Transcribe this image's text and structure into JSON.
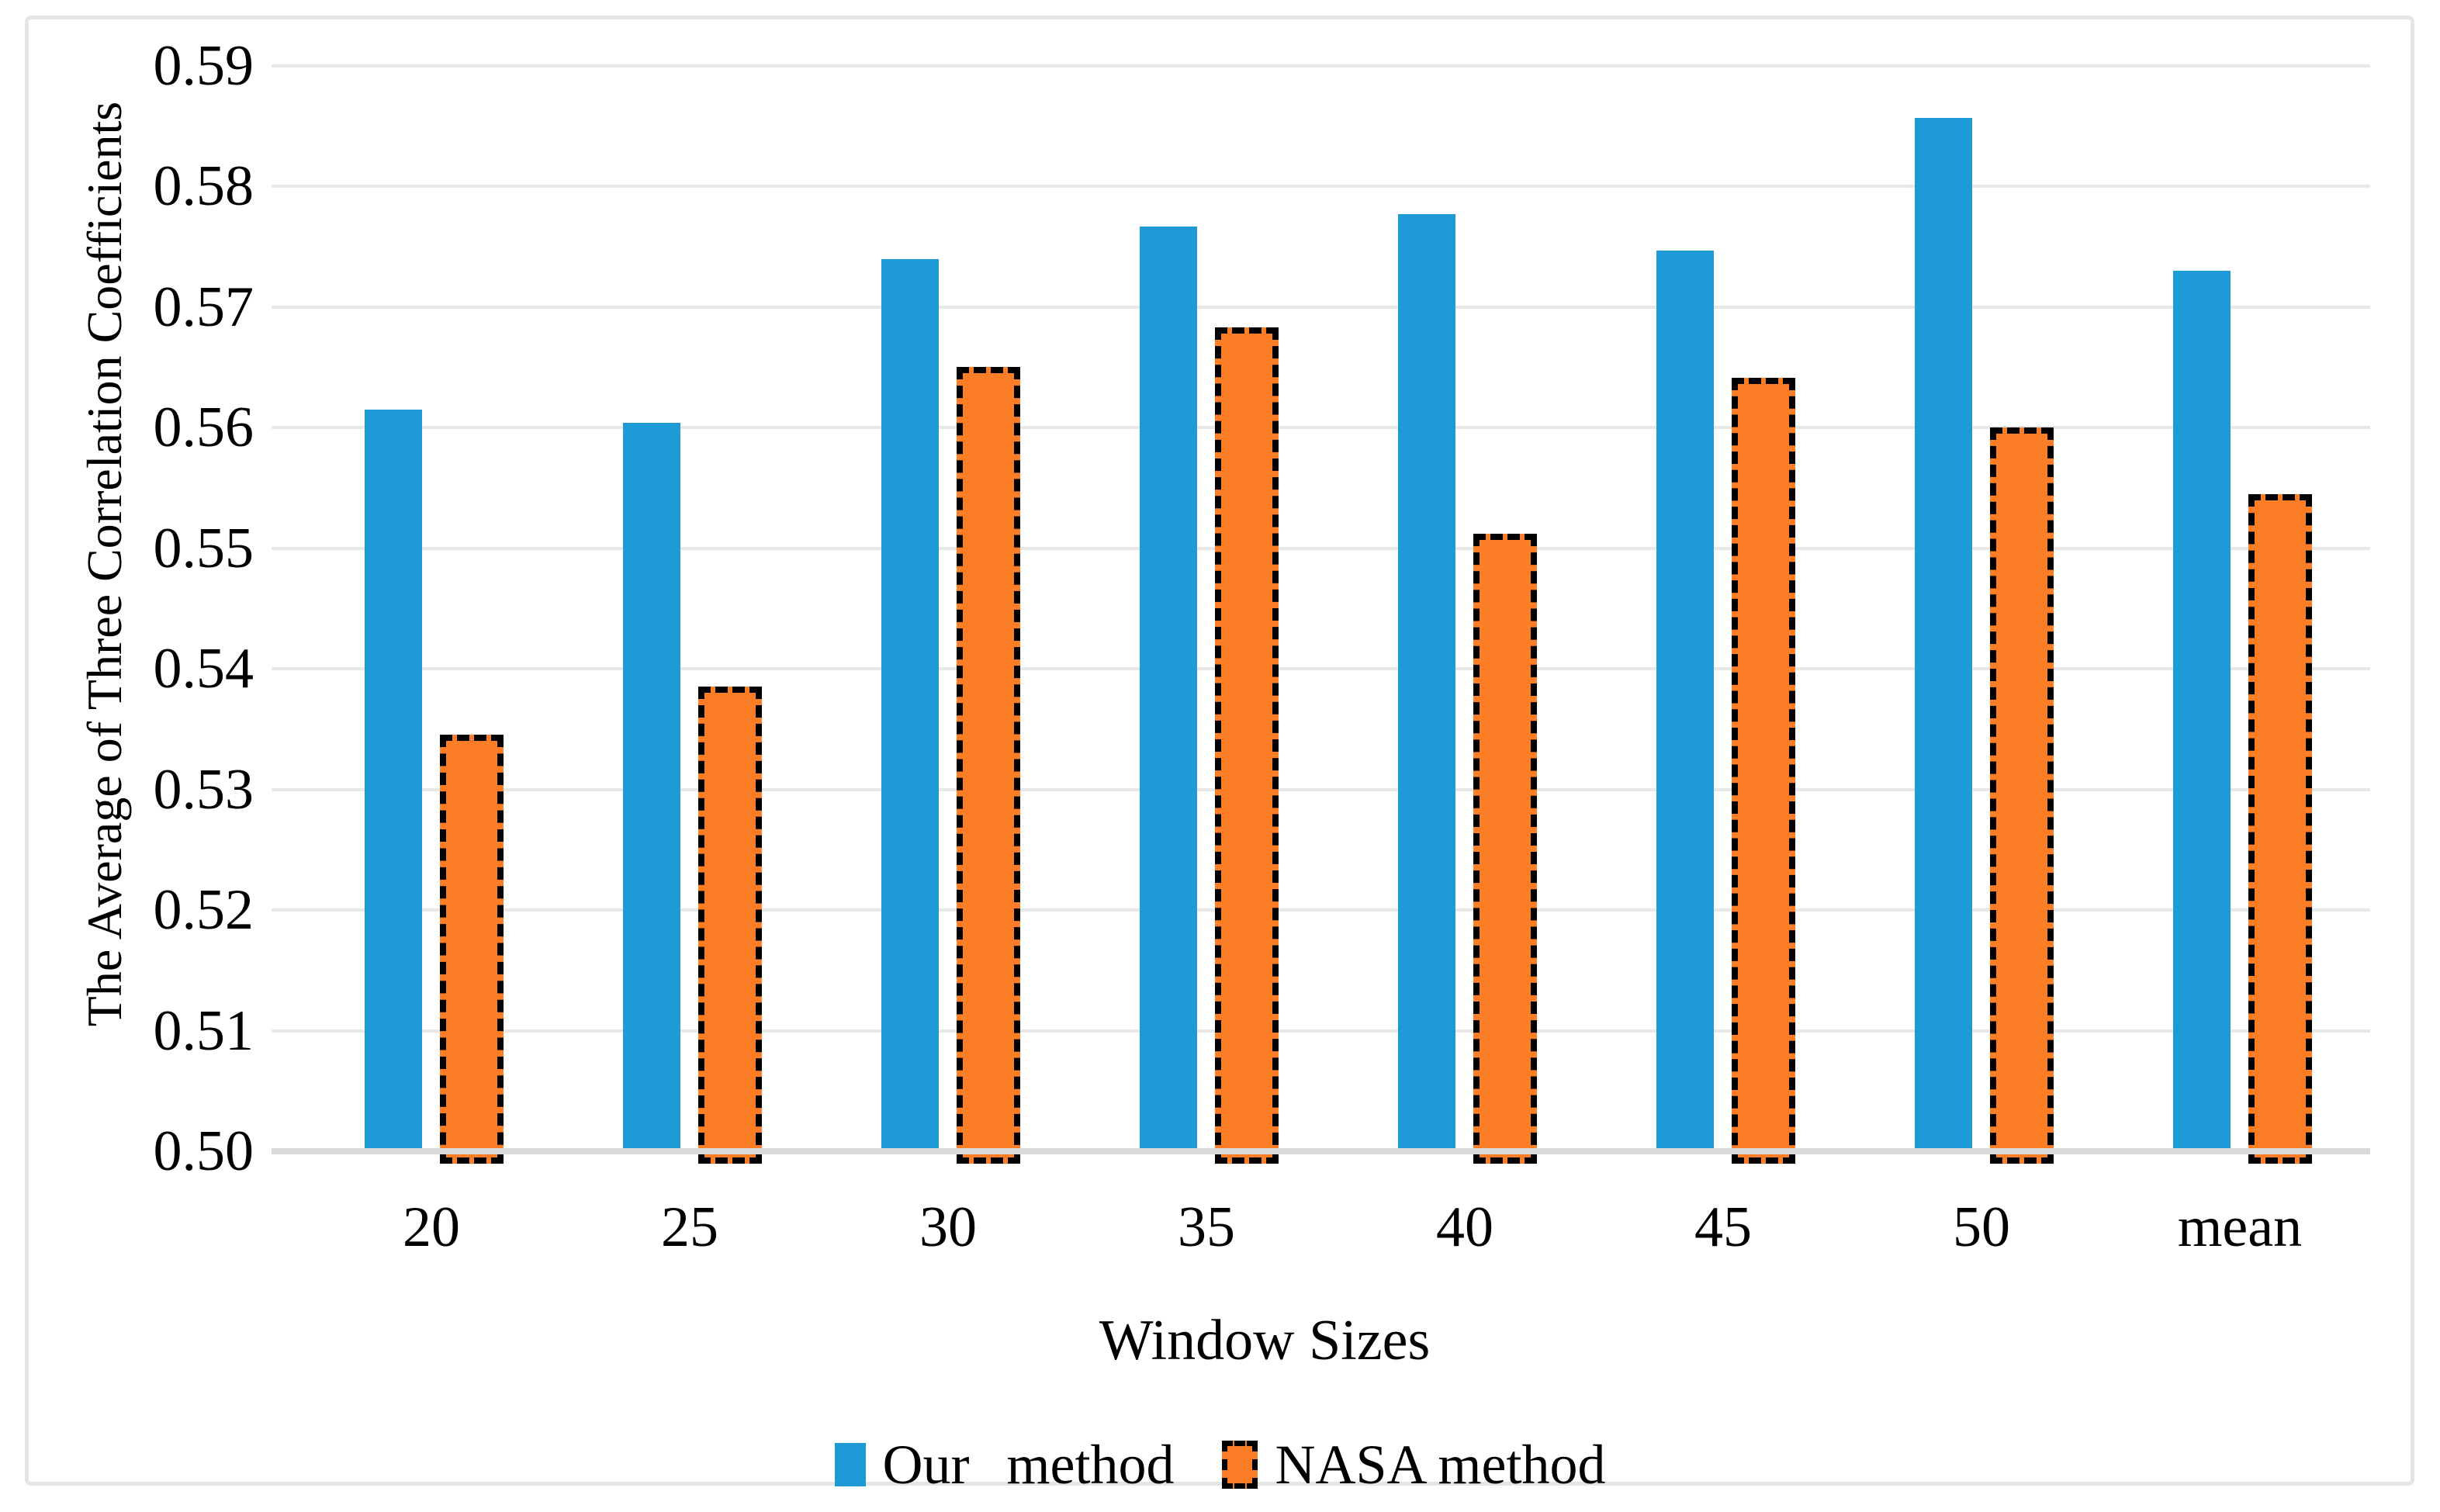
{
  "chart_data": {
    "type": "bar",
    "title": "",
    "xlabel": "Window Sizes",
    "ylabel": "The Average of Three Correlation Coefficients",
    "categories": [
      "20",
      "25",
      "30",
      "35",
      "40",
      "45",
      "50",
      "mean"
    ],
    "series": [
      {
        "name": "Our method",
        "color": "#1e9ad6",
        "dashed_border": false,
        "values": [
          0.5615,
          0.5604,
          0.574,
          0.5767,
          0.5777,
          0.5747,
          0.5857,
          0.573
        ]
      },
      {
        "name": "NASA method",
        "color": "#fb7d26",
        "dashed_border": true,
        "border_color": "#000000",
        "values": [
          0.534,
          0.538,
          0.5645,
          0.5678,
          0.5507,
          0.5636,
          0.5595,
          0.554
        ]
      }
    ],
    "ylim": [
      0.5,
      0.59
    ],
    "ytick_step": 0.01,
    "ytick_labels": [
      "0.50",
      "0.51",
      "0.52",
      "0.53",
      "0.54",
      "0.55",
      "0.56",
      "0.57",
      "0.58",
      "0.59"
    ],
    "grid": true,
    "gridline_color": "#e8e8e8",
    "axis_line_color": "#d9d9d9",
    "legend_position": "bottom"
  }
}
